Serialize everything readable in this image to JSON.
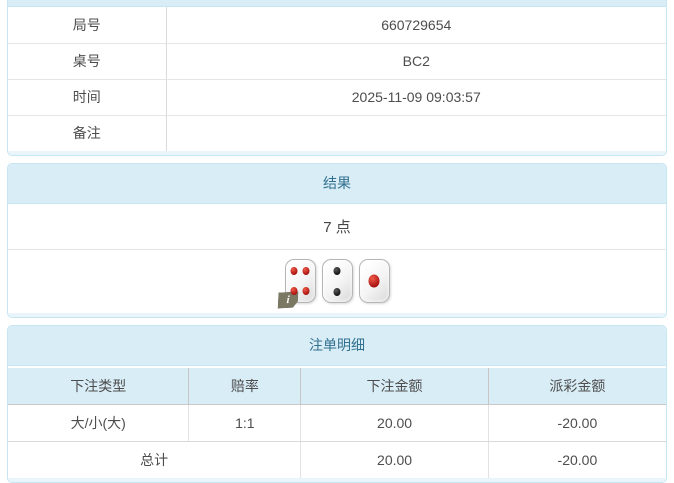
{
  "colors": {
    "panel_border": "#c6e6f2",
    "heading_bg": "#d9edf7",
    "heading_text": "#31708f",
    "body_text": "#4d4d4d",
    "negative_red": "#e23b3b"
  },
  "game_info": {
    "rows": [
      {
        "label": "局号",
        "value": "660729654"
      },
      {
        "label": "桌号",
        "value": "BC2"
      },
      {
        "label": "时间",
        "value": "2025-11-09 09:03:57"
      },
      {
        "label": "备注",
        "value": ""
      }
    ]
  },
  "result": {
    "title": "结果",
    "points": "7 点",
    "dice": [
      {
        "value": 4,
        "pip_color": "red"
      },
      {
        "value": 2,
        "pip_color": "black"
      },
      {
        "value": 1,
        "pip_color": "red"
      }
    ],
    "info_badge": "i"
  },
  "bet_details": {
    "title": "注单明细",
    "columns": [
      "下注类型",
      "赔率",
      "下注金额",
      "派彩金额"
    ],
    "rows": [
      {
        "bet_type": "大/小(大)",
        "odds": "1:1",
        "bet_amount": "20.00",
        "payout": "-20.00"
      }
    ],
    "total": {
      "label": "总计",
      "bet_amount": "20.00",
      "payout": "-20.00"
    }
  }
}
